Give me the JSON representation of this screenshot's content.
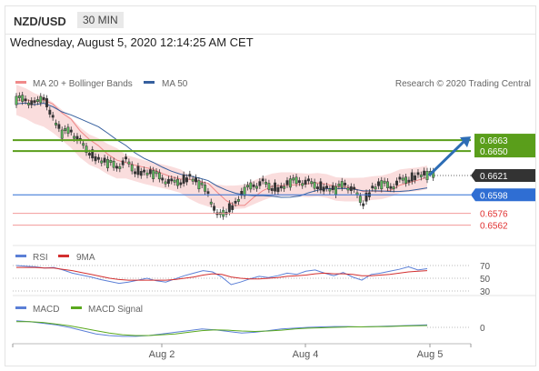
{
  "header": {
    "symbol": "NZD/USD",
    "timeframe": "30 MIN"
  },
  "datetime": "Wednesday, August 5, 2020 12:14:25 AM CET",
  "legend": {
    "ma20": "MA 20 + Bollinger Bands",
    "ma50": "MA 50",
    "credit": "Research © 2020 Trading Central"
  },
  "colors": {
    "resistance": "#5a9e1b",
    "support_blue": "#2f6ed3",
    "support_red": "#e03131",
    "last": "#333333",
    "ma50": "#36609e",
    "bands": "#f7c6c6"
  },
  "chart_data": [
    {
      "type": "candlestick",
      "x_labels": [
        "Aug 2",
        "Aug 4",
        "Aug 5"
      ],
      "levels": [
        {
          "label": "0.6663",
          "value": 0.6663,
          "kind": "resistance"
        },
        {
          "label": "0.6650",
          "value": 0.665,
          "kind": "resistance"
        },
        {
          "label": "0.6621",
          "value": 0.6621,
          "kind": "last"
        },
        {
          "label": "0.6598",
          "value": 0.6598,
          "kind": "support"
        },
        {
          "label": "0.6576",
          "value": 0.6576,
          "kind": "support_minor"
        },
        {
          "label": "0.6562",
          "value": 0.6562,
          "kind": "support_minor"
        }
      ],
      "close_path": [
        0.671,
        0.6712,
        0.6705,
        0.6716,
        0.669,
        0.667,
        0.6675,
        0.666,
        0.665,
        0.664,
        0.6635,
        0.6632,
        0.6638,
        0.6628,
        0.6625,
        0.6622,
        0.6618,
        0.6612,
        0.6615,
        0.662,
        0.661,
        0.6602,
        0.6572,
        0.658,
        0.6588,
        0.6602,
        0.661,
        0.6612,
        0.6608,
        0.6606,
        0.6612,
        0.6615,
        0.6612,
        0.661,
        0.6606,
        0.6603,
        0.6612,
        0.6602,
        0.659,
        0.6606,
        0.661,
        0.6608,
        0.6614,
        0.6618,
        0.6622,
        0.6621
      ],
      "projection": {
        "from": 0.6621,
        "to": 0.6663
      },
      "y_range": [
        0.654,
        0.673
      ]
    },
    {
      "type": "line",
      "name": "RSI",
      "legend": [
        "RSI",
        "9MA"
      ],
      "levels": [
        "70",
        "50",
        "30"
      ],
      "series": [
        {
          "name": "RSI",
          "values": [
            70,
            69,
            68,
            66,
            67,
            63,
            58,
            55,
            52,
            48,
            45,
            42,
            44,
            47,
            50,
            46,
            44,
            49,
            54,
            58,
            62,
            60,
            52,
            40,
            44,
            49,
            53,
            51,
            54,
            58,
            56,
            61,
            63,
            58,
            54,
            59,
            52,
            47,
            56,
            58,
            61,
            64,
            68,
            63,
            65
          ]
        },
        {
          "name": "9MA",
          "values": [
            67,
            67,
            67,
            66,
            66,
            64,
            62,
            59,
            56,
            53,
            50,
            48,
            47,
            47,
            47,
            47,
            47,
            48,
            50,
            52,
            55,
            57,
            56,
            52,
            50,
            49,
            49,
            50,
            51,
            53,
            54,
            55,
            57,
            58,
            57,
            57,
            56,
            54,
            54,
            55,
            56,
            58,
            60,
            61,
            62
          ]
        }
      ]
    },
    {
      "type": "line",
      "name": "MACD",
      "legend": [
        "MACD",
        "MACD Signal"
      ],
      "levels": [
        "0"
      ],
      "series": [
        {
          "name": "MACD",
          "values": [
            0.8,
            0.7,
            0.5,
            0.3,
            0.0,
            -0.4,
            -0.8,
            -1.0,
            -1.1,
            -1.1,
            -1.0,
            -0.8,
            -0.6,
            -0.4,
            -0.2,
            -0.3,
            -0.5,
            -0.7,
            -0.6,
            -0.4,
            -0.2,
            -0.1,
            0.0,
            0.05,
            0.1,
            0.1,
            0.05,
            0.1,
            0.15,
            0.2,
            0.25,
            0.3
          ]
        },
        {
          "name": "MACD Signal",
          "values": [
            0.7,
            0.7,
            0.6,
            0.4,
            0.2,
            -0.1,
            -0.4,
            -0.7,
            -0.9,
            -1.0,
            -1.0,
            -0.9,
            -0.8,
            -0.6,
            -0.4,
            -0.3,
            -0.35,
            -0.45,
            -0.5,
            -0.45,
            -0.35,
            -0.2,
            -0.1,
            -0.05,
            0.0,
            0.05,
            0.05,
            0.08,
            0.1,
            0.15,
            0.2,
            0.22
          ]
        }
      ]
    }
  ]
}
